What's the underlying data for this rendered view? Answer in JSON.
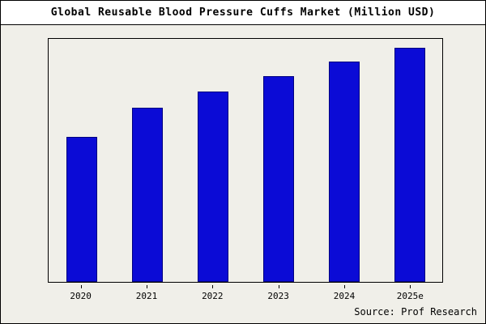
{
  "title": "Global Reusable Blood Pressure Cuffs Market (Million USD)",
  "source": "Source: Prof Research",
  "colors": {
    "bar_fill": "#0b0bd6",
    "bar_border": "#000080",
    "page_bg": "#f0efe9",
    "title_bg": "#ffffff",
    "frame": "#000000"
  },
  "chart_data": {
    "type": "bar",
    "categories": [
      "2020",
      "2021",
      "2022",
      "2023",
      "2024",
      "2025e"
    ],
    "values": [
      185,
      222,
      243,
      262,
      281,
      299
    ],
    "title": "Global Reusable Blood Pressure Cuffs Market (Million USD)",
    "xlabel": "",
    "ylabel": "",
    "ylim": [
      0,
      310
    ],
    "grid": false,
    "legend": false,
    "annotation": "Source: Prof Research"
  }
}
